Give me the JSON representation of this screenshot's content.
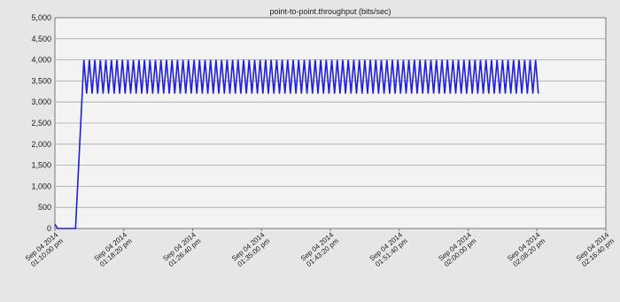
{
  "chart_data": {
    "type": "line",
    "title": "point-to-point.throughput (bits/sec)",
    "xlabel": "",
    "ylabel": "",
    "ylim": [
      0,
      5000
    ],
    "yticks": [
      0,
      500,
      1000,
      1500,
      2000,
      2500,
      3000,
      3500,
      4000,
      4500,
      5000
    ],
    "ytick_labels": [
      "0",
      "500",
      "1,000",
      "1,500",
      "2,000",
      "2,500",
      "3,000",
      "3,500",
      "4,000",
      "4,500",
      "5,000"
    ],
    "xlim_seconds": [
      0,
      4000
    ],
    "xticks": [
      {
        "line1": "Sep 04 2014",
        "line2": "01:10:00 pm",
        "t": 0
      },
      {
        "line1": "Sep 04 2014",
        "line2": "01:18:20 pm",
        "t": 500
      },
      {
        "line1": "Sep 04 2014",
        "line2": "01:26:40 pm",
        "t": 1000
      },
      {
        "line1": "Sep 04 2014",
        "line2": "01:35:00 pm",
        "t": 1500
      },
      {
        "line1": "Sep 04 2014",
        "line2": "01:43:20 pm",
        "t": 2000
      },
      {
        "line1": "Sep 04 2014",
        "line2": "01:51:40 pm",
        "t": 2500
      },
      {
        "line1": "Sep 04 2014",
        "line2": "02:00:00 pm",
        "t": 3000
      },
      {
        "line1": "Sep 04 2014",
        "line2": "02:08:20 pm",
        "t": 3500
      },
      {
        "line1": "Sep 04 2014",
        "line2": "02:16:40 pm",
        "t": 4000
      }
    ],
    "grid": true,
    "series": [
      {
        "color": "#1f1fe0",
        "description_values": "initial 0–190 s near 0, sharp rise to 4000 at ~210 s, then sawtooth oscillating between ~3200 and ~4000 until ~3500 s, ending at 3200",
        "points": [
          [
            0,
            100
          ],
          [
            20,
            0
          ],
          [
            150,
            0
          ],
          [
            210,
            4000
          ],
          [
            230,
            3200
          ],
          [
            250,
            4000
          ],
          [
            270,
            3200
          ],
          [
            290,
            4000
          ],
          [
            310,
            3200
          ],
          [
            330,
            4000
          ],
          [
            350,
            3200
          ],
          [
            370,
            4000
          ],
          [
            390,
            3200
          ],
          [
            410,
            4000
          ],
          [
            430,
            3200
          ],
          [
            450,
            4000
          ],
          [
            470,
            3200
          ],
          [
            490,
            4000
          ],
          [
            510,
            3200
          ],
          [
            530,
            4000
          ],
          [
            550,
            3200
          ],
          [
            570,
            4000
          ],
          [
            590,
            3200
          ],
          [
            610,
            4000
          ],
          [
            630,
            3200
          ],
          [
            650,
            4000
          ],
          [
            670,
            3200
          ],
          [
            690,
            4000
          ],
          [
            710,
            3200
          ],
          [
            730,
            4000
          ],
          [
            750,
            3200
          ],
          [
            770,
            4000
          ],
          [
            790,
            3200
          ],
          [
            810,
            4000
          ],
          [
            830,
            3200
          ],
          [
            850,
            4000
          ],
          [
            870,
            3200
          ],
          [
            890,
            4000
          ],
          [
            910,
            3200
          ],
          [
            930,
            4000
          ],
          [
            950,
            3200
          ],
          [
            970,
            4000
          ],
          [
            990,
            3200
          ],
          [
            1010,
            4000
          ],
          [
            1030,
            3200
          ],
          [
            1050,
            4000
          ],
          [
            1070,
            3200
          ],
          [
            1090,
            4000
          ],
          [
            1110,
            3200
          ],
          [
            1130,
            4000
          ],
          [
            1150,
            3200
          ],
          [
            1170,
            4000
          ],
          [
            1190,
            3200
          ],
          [
            1210,
            4000
          ],
          [
            1230,
            3200
          ],
          [
            1250,
            4000
          ],
          [
            1270,
            3200
          ],
          [
            1290,
            4000
          ],
          [
            1310,
            3200
          ],
          [
            1330,
            4000
          ],
          [
            1350,
            3200
          ],
          [
            1370,
            4000
          ],
          [
            1390,
            3200
          ],
          [
            1410,
            4000
          ],
          [
            1430,
            3200
          ],
          [
            1450,
            4000
          ],
          [
            1470,
            3200
          ],
          [
            1490,
            4000
          ],
          [
            1510,
            3200
          ],
          [
            1530,
            4000
          ],
          [
            1550,
            3200
          ],
          [
            1570,
            4000
          ],
          [
            1590,
            3200
          ],
          [
            1610,
            4000
          ],
          [
            1630,
            3200
          ],
          [
            1650,
            4000
          ],
          [
            1670,
            3200
          ],
          [
            1690,
            4000
          ],
          [
            1710,
            3200
          ],
          [
            1730,
            4000
          ],
          [
            1750,
            3200
          ],
          [
            1770,
            4000
          ],
          [
            1790,
            3200
          ],
          [
            1810,
            4000
          ],
          [
            1830,
            3200
          ],
          [
            1850,
            4000
          ],
          [
            1870,
            3200
          ],
          [
            1890,
            4000
          ],
          [
            1910,
            3200
          ],
          [
            1930,
            4000
          ],
          [
            1950,
            3200
          ],
          [
            1970,
            4000
          ],
          [
            1990,
            3200
          ],
          [
            2010,
            4000
          ],
          [
            2030,
            3200
          ],
          [
            2050,
            4000
          ],
          [
            2070,
            3200
          ],
          [
            2090,
            4000
          ],
          [
            2110,
            3200
          ],
          [
            2130,
            4000
          ],
          [
            2150,
            3200
          ],
          [
            2170,
            4000
          ],
          [
            2190,
            3200
          ],
          [
            2210,
            4000
          ],
          [
            2230,
            3200
          ],
          [
            2250,
            4000
          ],
          [
            2270,
            3200
          ],
          [
            2290,
            4000
          ],
          [
            2310,
            3200
          ],
          [
            2330,
            4000
          ],
          [
            2350,
            3200
          ],
          [
            2370,
            4000
          ],
          [
            2390,
            3200
          ],
          [
            2410,
            4000
          ],
          [
            2430,
            3200
          ],
          [
            2450,
            4000
          ],
          [
            2470,
            3200
          ],
          [
            2490,
            4000
          ],
          [
            2510,
            3200
          ],
          [
            2530,
            4000
          ],
          [
            2550,
            3200
          ],
          [
            2570,
            4000
          ],
          [
            2590,
            3200
          ],
          [
            2610,
            4000
          ],
          [
            2630,
            3200
          ],
          [
            2650,
            4000
          ],
          [
            2670,
            3200
          ],
          [
            2690,
            4000
          ],
          [
            2710,
            3200
          ],
          [
            2730,
            4000
          ],
          [
            2750,
            3200
          ],
          [
            2770,
            4000
          ],
          [
            2790,
            3200
          ],
          [
            2810,
            4000
          ],
          [
            2830,
            3200
          ],
          [
            2850,
            4000
          ],
          [
            2870,
            3200
          ],
          [
            2890,
            4000
          ],
          [
            2910,
            3200
          ],
          [
            2930,
            4000
          ],
          [
            2950,
            3200
          ],
          [
            2970,
            4000
          ],
          [
            2990,
            3200
          ],
          [
            3010,
            4000
          ],
          [
            3030,
            3200
          ],
          [
            3050,
            4000
          ],
          [
            3070,
            3200
          ],
          [
            3090,
            4000
          ],
          [
            3110,
            3200
          ],
          [
            3130,
            4000
          ],
          [
            3150,
            3200
          ],
          [
            3170,
            4000
          ],
          [
            3190,
            3200
          ],
          [
            3210,
            4000
          ],
          [
            3230,
            3200
          ],
          [
            3250,
            4000
          ],
          [
            3270,
            3200
          ],
          [
            3290,
            4000
          ],
          [
            3310,
            3200
          ],
          [
            3330,
            4000
          ],
          [
            3350,
            3200
          ],
          [
            3370,
            4000
          ],
          [
            3390,
            3200
          ],
          [
            3410,
            4000
          ],
          [
            3430,
            3200
          ],
          [
            3450,
            4000
          ],
          [
            3470,
            3200
          ],
          [
            3490,
            4000
          ],
          [
            3510,
            3200
          ]
        ]
      }
    ]
  }
}
